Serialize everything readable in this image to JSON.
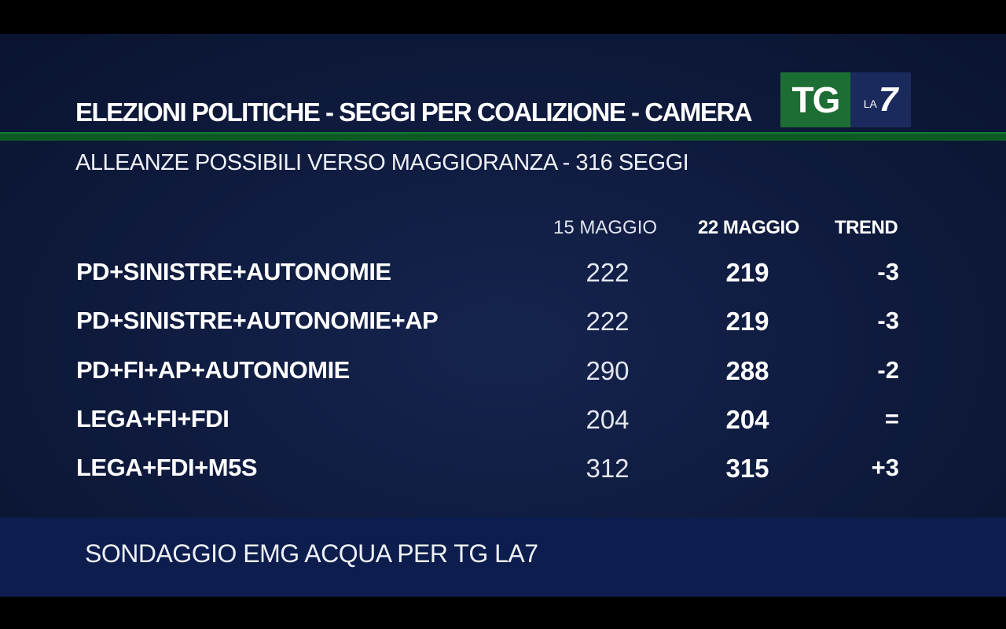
{
  "header": {
    "title": "ELEZIONI POLITICHE - SEGGI PER COALIZIONE - CAMERA",
    "subtitle": "ALLEANZE POSSIBILI VERSO MAGGIORANZA - 316 SEGGI"
  },
  "logo": {
    "tg": "TG",
    "la": "LA",
    "seven": "7"
  },
  "table": {
    "columns": [
      "15 MAGGIO",
      "22 MAGGIO",
      "TREND"
    ],
    "rows": [
      {
        "name": "PD+SINISTRE+AUTONOMIE",
        "may15": "222",
        "may22": "219",
        "trend": "-3"
      },
      {
        "name": "PD+SINISTRE+AUTONOMIE+AP",
        "may15": "222",
        "may22": "219",
        "trend": "-3"
      },
      {
        "name": "PD+FI+AP+AUTONOMIE",
        "may15": "290",
        "may22": "288",
        "trend": "-2"
      },
      {
        "name": "LEGA+FI+FDI",
        "may15": "204",
        "may22": "204",
        "trend": "="
      },
      {
        "name": "LEGA+FDI+M5S",
        "may15": "312",
        "may22": "315",
        "trend": "+3"
      }
    ]
  },
  "footer": {
    "source": "SONDAGGIO EMG ACQUA PER TG LA7"
  },
  "colors": {
    "background": "#101c40",
    "green_bar": "#0d5a25",
    "footer_band": "#0c1d4e",
    "logo_green": "#1d6e34",
    "logo_blue": "#1a2a5c"
  }
}
